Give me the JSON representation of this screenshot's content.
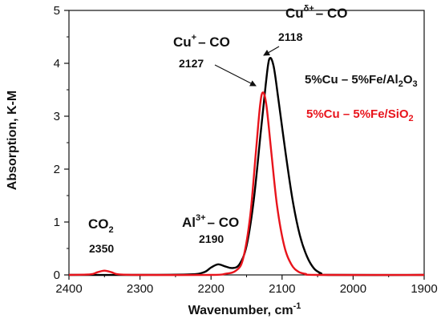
{
  "chart_data": {
    "type": "line",
    "xlabel_text": "Wavenumber, cm",
    "xlabel_sup": "-1",
    "ylabel": "Absorption, K-M",
    "xlim": [
      2400,
      1900
    ],
    "ylim": [
      0,
      5
    ],
    "x_ticks": [
      2400,
      2300,
      2200,
      2100,
      2000,
      1900
    ],
    "y_ticks": [
      0,
      1,
      2,
      3,
      4,
      5
    ],
    "series": [
      {
        "name": "5%Cu – 5%Fe/Al2O3",
        "color": "#000000",
        "points": [
          [
            2400,
            0.0
          ],
          [
            2300,
            0.0
          ],
          [
            2230,
            0.01
          ],
          [
            2210,
            0.05
          ],
          [
            2200,
            0.14
          ],
          [
            2190,
            0.2
          ],
          [
            2180,
            0.16
          ],
          [
            2170,
            0.13
          ],
          [
            2160,
            0.2
          ],
          [
            2150,
            0.55
          ],
          [
            2140,
            1.4
          ],
          [
            2130,
            2.7
          ],
          [
            2123,
            3.6
          ],
          [
            2118,
            4.08
          ],
          [
            2112,
            3.95
          ],
          [
            2105,
            3.3
          ],
          [
            2095,
            2.3
          ],
          [
            2085,
            1.4
          ],
          [
            2075,
            0.75
          ],
          [
            2065,
            0.35
          ],
          [
            2055,
            0.12
          ],
          [
            2045,
            0.03
          ],
          [
            2035,
            0.0
          ],
          [
            1900,
            0.0
          ]
        ]
      },
      {
        "name": "5%Cu – 5%Fe/SiO2",
        "color": "#e8141c",
        "points": [
          [
            2400,
            0.0
          ],
          [
            2370,
            0.01
          ],
          [
            2360,
            0.05
          ],
          [
            2350,
            0.08
          ],
          [
            2340,
            0.05
          ],
          [
            2330,
            0.01
          ],
          [
            2300,
            0.0
          ],
          [
            2200,
            0.0
          ],
          [
            2180,
            0.02
          ],
          [
            2165,
            0.08
          ],
          [
            2155,
            0.3
          ],
          [
            2145,
            1.1
          ],
          [
            2137,
            2.3
          ],
          [
            2131,
            3.2
          ],
          [
            2127,
            3.45
          ],
          [
            2122,
            3.2
          ],
          [
            2115,
            2.3
          ],
          [
            2107,
            1.3
          ],
          [
            2097,
            0.55
          ],
          [
            2087,
            0.2
          ],
          [
            2077,
            0.06
          ],
          [
            2067,
            0.02
          ],
          [
            2050,
            0.0
          ],
          [
            1900,
            0.0
          ]
        ]
      }
    ],
    "legend": {
      "al2o3": {
        "pre": "5%Cu – 5%Fe/Al",
        "sub1": "2",
        "mid": "O",
        "sub2": "3",
        "color": "#000000"
      },
      "sio2": {
        "pre": "5%Cu – 5%Fe/SiO",
        "sub": "2",
        "color": "#e8141c"
      }
    },
    "annotations": {
      "cu_delta": {
        "base": "Cu",
        "sup": "δ+",
        "rest": "– CO",
        "value": "2118"
      },
      "cu_plus": {
        "base": "Cu",
        "sup": "+",
        "rest": "– CO",
        "value": "2127"
      },
      "al": {
        "base": "Al",
        "sup": "3+",
        "rest": "– CO",
        "value": "2190"
      },
      "co2": {
        "base": "CO",
        "sub": "2",
        "value": "2350"
      }
    }
  }
}
